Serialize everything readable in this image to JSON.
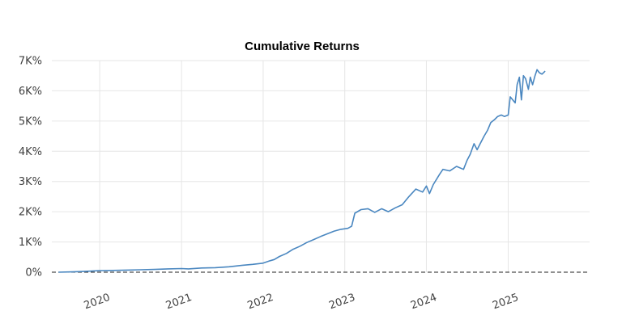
{
  "chart_data": {
    "type": "line",
    "title": "Cumulative Returns",
    "xlabel": "",
    "ylabel": "",
    "ylim": [
      0,
      7000
    ],
    "y_ticks": [
      0,
      1000,
      2000,
      3000,
      4000,
      5000,
      6000,
      7000
    ],
    "y_tick_labels": [
      "0%",
      "1K%",
      "2K%",
      "3K%",
      "4K%",
      "5K%",
      "6K%",
      "7K%"
    ],
    "xlim": [
      "2019-06-01",
      "2025-12-31"
    ],
    "x_ticks": [
      "2020-01-01",
      "2021-01-01",
      "2022-01-01",
      "2023-01-01",
      "2024-01-01",
      "2025-01-01"
    ],
    "x_tick_labels": [
      "2020",
      "2021",
      "2022",
      "2023",
      "2024",
      "2025"
    ],
    "x_tick_rotation": -20,
    "grid": true,
    "reference_line": {
      "y": 0,
      "style": "dashed",
      "color": "#222222"
    },
    "series": [
      {
        "color": "#4a87c0",
        "x": [
          "2019-07-01",
          "2019-09-01",
          "2019-11-01",
          "2020-01-01",
          "2020-03-01",
          "2020-05-01",
          "2020-07-01",
          "2020-09-01",
          "2020-11-01",
          "2021-01-01",
          "2021-02-01",
          "2021-04-01",
          "2021-06-01",
          "2021-08-01",
          "2021-10-01",
          "2021-11-15",
          "2022-01-01",
          "2022-02-01",
          "2022-02-20",
          "2022-03-15",
          "2022-04-15",
          "2022-05-15",
          "2022-06-15",
          "2022-07-15",
          "2022-08-15",
          "2022-09-15",
          "2022-10-15",
          "2022-11-15",
          "2022-12-15",
          "2023-01-15",
          "2023-02-01",
          "2023-02-15",
          "2023-03-15",
          "2023-04-15",
          "2023-05-15",
          "2023-06-15",
          "2023-07-15",
          "2023-08-15",
          "2023-09-15",
          "2023-10-15",
          "2023-11-15",
          "2023-12-15",
          "2024-01-01",
          "2024-01-15",
          "2024-02-01",
          "2024-03-01",
          "2024-03-15",
          "2024-04-15",
          "2024-05-15",
          "2024-06-15",
          "2024-07-01",
          "2024-07-15",
          "2024-08-01",
          "2024-08-15",
          "2024-09-01",
          "2024-09-15",
          "2024-10-01",
          "2024-10-15",
          "2024-11-01",
          "2024-11-15",
          "2024-12-01",
          "2024-12-15",
          "2025-01-01",
          "2025-01-10",
          "2025-02-01",
          "2025-02-10",
          "2025-02-20",
          "2025-03-01",
          "2025-03-10",
          "2025-03-20",
          "2025-04-01",
          "2025-04-10",
          "2025-04-20",
          "2025-05-01",
          "2025-05-10",
          "2025-05-20",
          "2025-06-01",
          "2025-06-15"
        ],
        "y": [
          0,
          10,
          30,
          50,
          60,
          70,
          80,
          90,
          110,
          120,
          110,
          140,
          150,
          180,
          230,
          260,
          300,
          380,
          420,
          520,
          620,
          760,
          860,
          980,
          1080,
          1180,
          1270,
          1360,
          1420,
          1450,
          1520,
          1950,
          2070,
          2100,
          1980,
          2100,
          2000,
          2130,
          2230,
          2500,
          2750,
          2650,
          2850,
          2600,
          2900,
          3250,
          3400,
          3350,
          3500,
          3400,
          3700,
          3900,
          4250,
          4050,
          4300,
          4500,
          4700,
          4950,
          5050,
          5150,
          5200,
          5150,
          5200,
          5800,
          5600,
          6200,
          6450,
          5700,
          6500,
          6400,
          6050,
          6450,
          6200,
          6500,
          6700,
          6600,
          6550,
          6650
        ]
      }
    ]
  }
}
